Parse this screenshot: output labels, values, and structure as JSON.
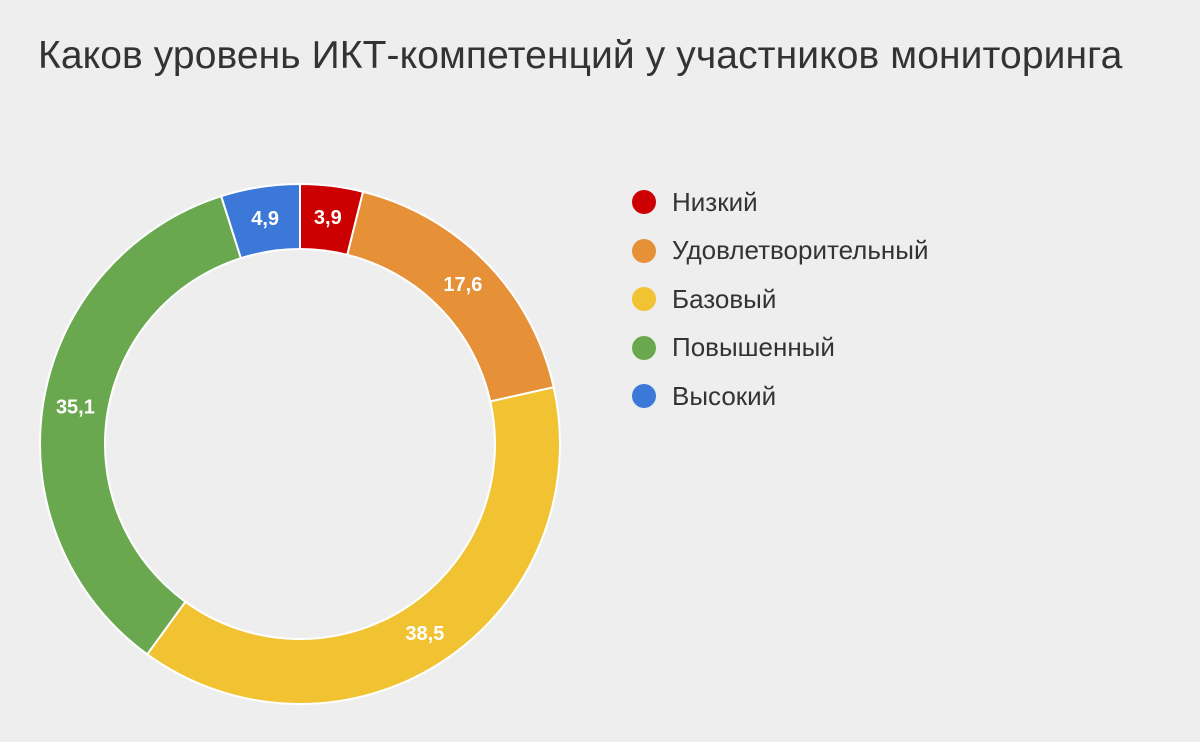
{
  "chart_data": {
    "type": "pie",
    "title": "Каков уровень ИКТ-компетенций у участников мониторинга",
    "donut": true,
    "legend_position": "right",
    "slices": [
      {
        "label": "Низкий",
        "value": 3.9,
        "display": "3,9",
        "color": "#cc0000"
      },
      {
        "label": "Удовлетворительный",
        "value": 17.6,
        "display": "17,6",
        "color": "#e69138"
      },
      {
        "label": "Базовый",
        "value": 38.5,
        "display": "38,5",
        "color": "#f1c232"
      },
      {
        "label": "Повышенный",
        "value": 35.1,
        "display": "35,1",
        "color": "#6aa84f"
      },
      {
        "label": "Высокий",
        "value": 4.9,
        "display": "4,9",
        "color": "#3c78d8"
      }
    ]
  }
}
